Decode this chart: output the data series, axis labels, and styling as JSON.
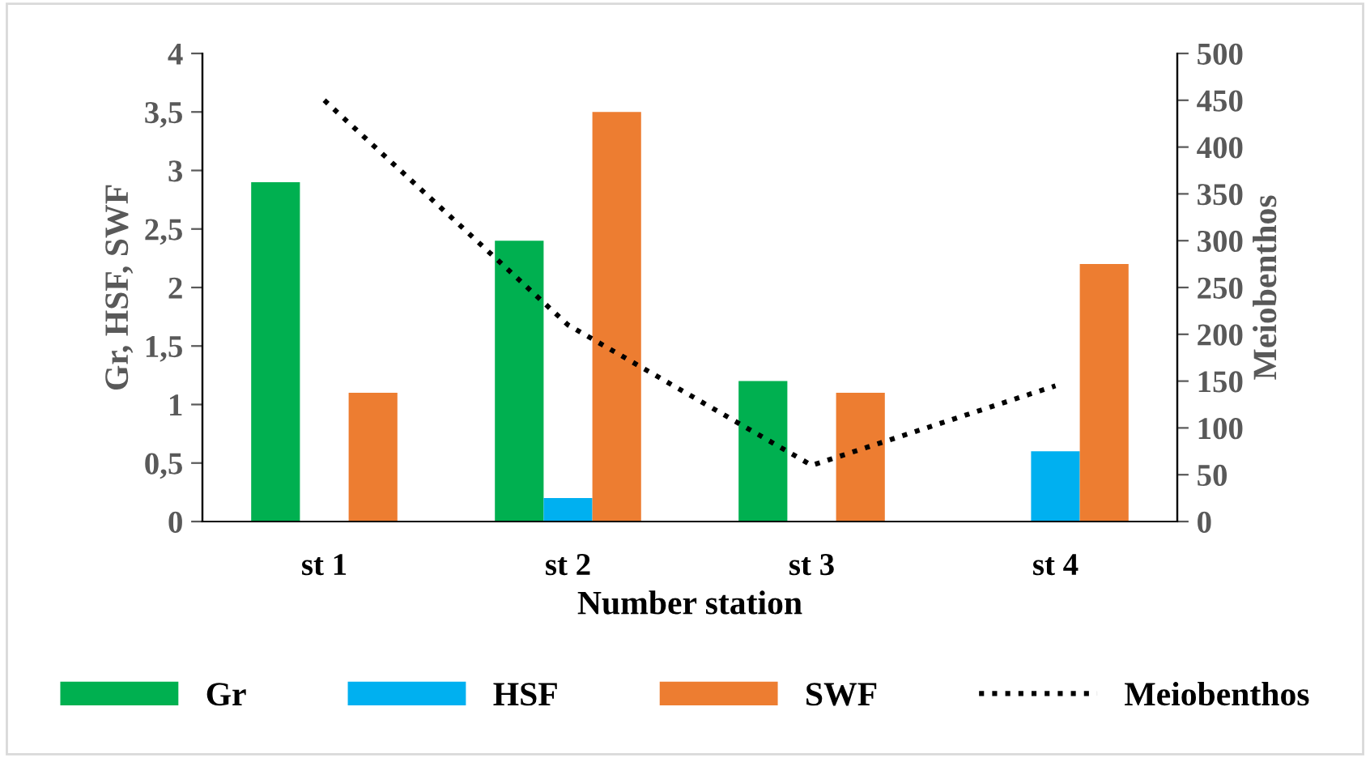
{
  "chart_data": {
    "type": "bar",
    "xlabel": "Number station",
    "ylabel": "Gr, HSF, SWF",
    "y2label": "Meiobenthos",
    "categories": [
      "st 1",
      "st 2",
      "st 3",
      "st 4"
    ],
    "series": [
      {
        "name": "Gr",
        "color": "#00b050",
        "values": [
          2.9,
          2.4,
          1.2,
          0
        ]
      },
      {
        "name": "HSF",
        "color": "#00b0f0",
        "values": [
          0,
          0.2,
          0,
          0.6
        ]
      },
      {
        "name": "SWF",
        "color": "#ed7d31",
        "values": [
          1.1,
          3.5,
          1.1,
          2.2
        ]
      },
      {
        "name": "Meiobenthos",
        "type": "line",
        "axis": "y2",
        "color": "#000000",
        "line_style": "dotted",
        "values": [
          450,
          210,
          60,
          145
        ]
      }
    ],
    "ylim": [
      0,
      4
    ],
    "yticks": [
      0,
      {
        "value": 0.5,
        "label": "0,5"
      },
      1,
      {
        "value": 1.5,
        "label": "1,5"
      },
      2,
      {
        "value": 2.5,
        "label": "2,5"
      },
      3,
      {
        "value": 3.5,
        "label": "3,5"
      },
      4
    ],
    "y2lim": [
      0,
      500
    ],
    "y2ticks": [
      0,
      50,
      100,
      150,
      200,
      250,
      300,
      350,
      400,
      450,
      500
    ],
    "grid": false,
    "legend": "bottom"
  }
}
